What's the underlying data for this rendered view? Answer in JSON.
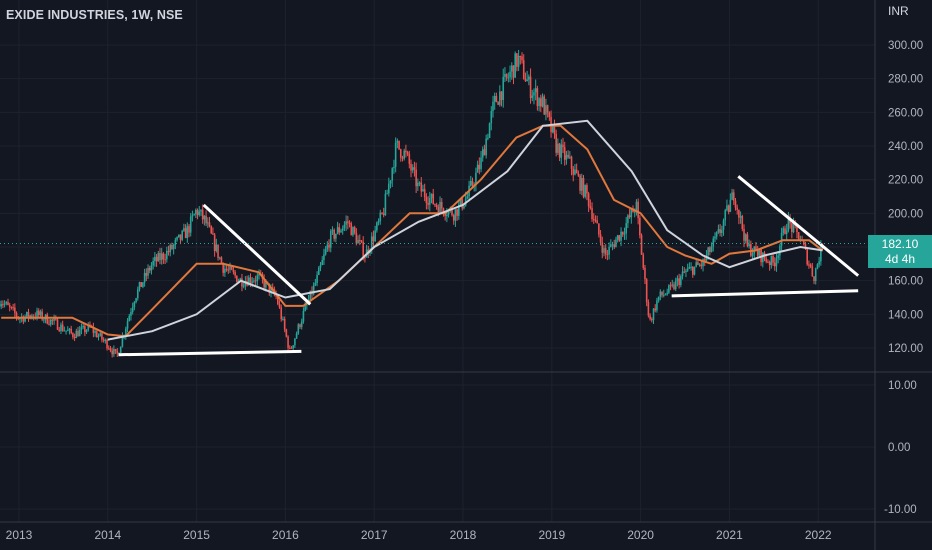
{
  "header": {
    "title": "EXIDE INDUSTRIES, 1W, NSE",
    "currency": "INR"
  },
  "price_badge": {
    "price": "182.10",
    "countdown": "4d 4h"
  },
  "colors": {
    "background": "#131722",
    "up": "#26a69a",
    "down": "#ef5350",
    "ma_fast": "#e0773c",
    "ma_slow": "#cfd3dc",
    "trendline": "#ffffff",
    "price_line": "#26a69a"
  },
  "chart_data": {
    "type": "candlestick",
    "title": "EXIDE INDUSTRIES, 1W, NSE",
    "x_ticks": [
      "2013",
      "2014",
      "2015",
      "2016",
      "2017",
      "2018",
      "2019",
      "2020",
      "2021",
      "2022"
    ],
    "upper_pane": {
      "y_ticks": [
        "120.00",
        "140.00",
        "160.00",
        "180.00",
        "200.00",
        "220.00",
        "240.00",
        "260.00",
        "280.00",
        "300.00"
      ],
      "ylim": [
        108,
        318
      ],
      "last_price": 182.1,
      "series": [
        {
          "name": "close",
          "x": [
            2012.8,
            2013.0,
            2013.2,
            2013.4,
            2013.6,
            2013.8,
            2014.0,
            2014.1,
            2014.3,
            2014.5,
            2014.7,
            2014.9,
            2015.0,
            2015.1,
            2015.3,
            2015.5,
            2015.7,
            2015.9,
            2016.05,
            2016.2,
            2016.35,
            2016.5,
            2016.7,
            2016.9,
            2017.1,
            2017.25,
            2017.35,
            2017.5,
            2017.7,
            2017.9,
            2018.05,
            2018.2,
            2018.35,
            2018.5,
            2018.62,
            2018.75,
            2018.9,
            2019.05,
            2019.2,
            2019.4,
            2019.6,
            2019.8,
            2019.95,
            2020.1,
            2020.2,
            2020.35,
            2020.5,
            2020.7,
            2020.9,
            2021.05,
            2021.2,
            2021.35,
            2021.5,
            2021.65,
            2021.8,
            2021.95,
            2022.05
          ],
          "values": [
            148,
            138,
            140,
            135,
            128,
            132,
            122,
            115,
            150,
            170,
            178,
            190,
            202,
            195,
            168,
            160,
            162,
            150,
            118,
            140,
            160,
            185,
            195,
            175,
            200,
            240,
            235,
            215,
            205,
            200,
            210,
            230,
            265,
            280,
            292,
            275,
            265,
            240,
            230,
            210,
            175,
            190,
            205,
            135,
            150,
            155,
            165,
            170,
            190,
            212,
            180,
            175,
            170,
            195,
            185,
            162,
            182
          ]
        },
        {
          "name": "ma_fast",
          "x": [
            2012.8,
            2013.2,
            2013.6,
            2014.0,
            2014.2,
            2014.5,
            2015.0,
            2015.3,
            2015.7,
            2016.0,
            2016.2,
            2016.6,
            2017.0,
            2017.4,
            2017.8,
            2018.2,
            2018.6,
            2018.9,
            2019.1,
            2019.4,
            2019.7,
            2020.0,
            2020.3,
            2020.5,
            2020.8,
            2021.0,
            2021.3,
            2021.6,
            2021.9,
            2022.05
          ],
          "values": [
            138,
            138,
            138,
            128,
            127,
            143,
            170,
            170,
            165,
            145,
            145,
            160,
            180,
            200,
            200,
            220,
            245,
            252,
            252,
            238,
            208,
            200,
            180,
            175,
            170,
            176,
            178,
            184,
            184,
            178
          ]
        },
        {
          "name": "ma_slow",
          "x": [
            2014.0,
            2014.5,
            2015.0,
            2015.5,
            2016.0,
            2016.5,
            2017.0,
            2017.5,
            2018.0,
            2018.5,
            2018.9,
            2019.4,
            2019.9,
            2020.3,
            2020.7,
            2021.0,
            2021.4,
            2021.8,
            2022.05
          ],
          "values": [
            125,
            130,
            140,
            160,
            150,
            155,
            180,
            195,
            205,
            225,
            252,
            255,
            225,
            190,
            175,
            168,
            175,
            180,
            178
          ]
        }
      ],
      "trendlines": [
        {
          "x": [
            2015.08,
            2016.28
          ],
          "values": [
            205,
            146
          ]
        },
        {
          "x": [
            2014.12,
            2016.18
          ],
          "values": [
            116,
            118
          ]
        },
        {
          "x": [
            2021.1,
            2022.45
          ],
          "values": [
            222,
            163
          ]
        },
        {
          "x": [
            2020.35,
            2022.45
          ],
          "values": [
            151,
            154
          ]
        }
      ]
    },
    "lower_pane": {
      "y_ticks": [
        "10.00",
        "0.00",
        "-10.00"
      ],
      "ylim": [
        -12,
        12
      ]
    }
  }
}
